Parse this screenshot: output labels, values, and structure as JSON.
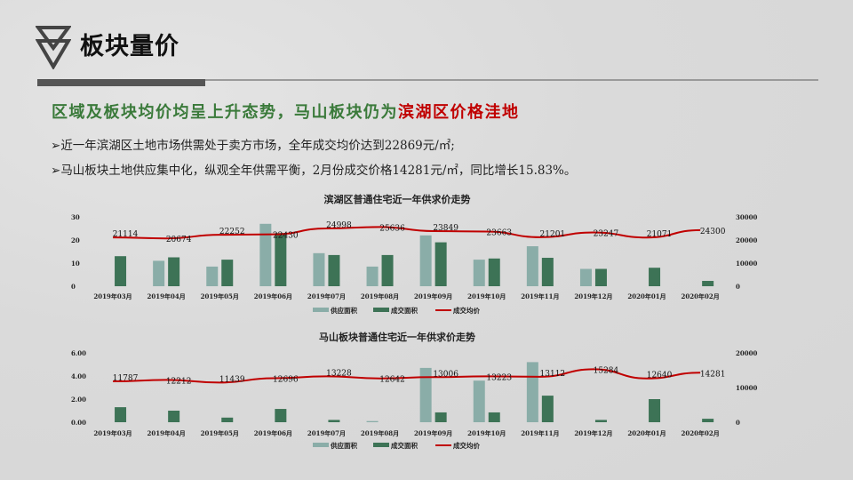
{
  "header": {
    "title": "板块量价",
    "logo_icon": "double-triangle-down-icon"
  },
  "subheading": {
    "green": "区域及板块均价均呈上升态势，马山板块仍为",
    "red": "滨湖区价格洼地",
    "green_color": "#3a7a3a",
    "red_color": "#c00000"
  },
  "bullets": [
    {
      "marker": "➢",
      "text": "近一年滨湖区土地市场供需处于卖方市场，全年成交均价达到22869元/㎡;"
    },
    {
      "marker": "➢",
      "text": "马山板块土地供应集中化，纵观全年供需平衡，2月份成交价格14281元/㎡，同比增长15.83%。"
    }
  ],
  "colors": {
    "supply": "#8aada8",
    "deal": "#3d7356",
    "price": "#c00000"
  },
  "chart_data": [
    {
      "type": "bar+line",
      "title": "滨湖区普通住宅近一年供求价走势",
      "categories": [
        "2019年03月",
        "2019年04月",
        "2019年05月",
        "2019年06月",
        "2019年07月",
        "2019年08月",
        "2019年09月",
        "2019年10月",
        "2019年11月",
        "2019年12月",
        "2020年01月",
        "2020年02月"
      ],
      "left_axis": {
        "range": [
          0,
          30
        ],
        "ticks": [
          "0",
          "10",
          "20",
          "30"
        ]
      },
      "right_axis": {
        "range": [
          0,
          30000
        ],
        "ticks": [
          "0",
          "10000",
          "20000",
          "30000"
        ]
      },
      "series": [
        {
          "name": "供应面积",
          "type": "bar",
          "axis": "left",
          "values": [
            0,
            11,
            8.5,
            27,
            14.3,
            8.5,
            22,
            11.5,
            17.3,
            7.5,
            0,
            0
          ]
        },
        {
          "name": "成交面积",
          "type": "bar",
          "axis": "left",
          "values": [
            13,
            12.5,
            11.5,
            23,
            13.5,
            13.5,
            19,
            12,
            12.3,
            7.5,
            8,
            2.3
          ]
        },
        {
          "name": "成交均价",
          "type": "line",
          "axis": "right",
          "values": [
            21114,
            20674,
            22252,
            22430,
            24998,
            25636,
            23849,
            23663,
            21201,
            23247,
            21071,
            24300
          ],
          "labels": [
            "21114",
            "20674",
            "22252",
            "22430",
            "24998",
            "25636",
            "23849",
            "23663",
            "21201",
            "23247",
            "21071",
            "24300"
          ]
        }
      ],
      "legend": "bottom",
      "grid": false
    },
    {
      "type": "bar+line",
      "title": "马山板块普通住宅近一年供求价走势",
      "categories": [
        "2019年03月",
        "2019年04月",
        "2019年05月",
        "2019年06月",
        "2019年07月",
        "2019年08月",
        "2019年09月",
        "2019年10月",
        "2019年11月",
        "2019年12月",
        "2020年01月",
        "2020年02月"
      ],
      "left_axis": {
        "range": [
          0,
          6
        ],
        "ticks": [
          "0.00",
          "2.00",
          "4.00",
          "6.00"
        ]
      },
      "right_axis": {
        "range": [
          0,
          20000
        ],
        "ticks": [
          "0",
          "10000",
          "20000"
        ]
      },
      "series": [
        {
          "name": "供应面积",
          "type": "bar",
          "axis": "left",
          "values": [
            0,
            0,
            0,
            0,
            0,
            0.1,
            4.7,
            3.6,
            5.2,
            0,
            0,
            0
          ]
        },
        {
          "name": "成交面积",
          "type": "bar",
          "axis": "left",
          "values": [
            1.3,
            1.0,
            0.4,
            1.15,
            0.2,
            0,
            0.85,
            0.85,
            2.3,
            0.2,
            2.0,
            0.3
          ]
        },
        {
          "name": "成交均价",
          "type": "line",
          "axis": "right",
          "values": [
            11787,
            12212,
            11439,
            12696,
            13228,
            12642,
            13006,
            13223,
            13112,
            15284,
            12640,
            14281
          ],
          "labels": [
            "11787",
            "12212",
            "11439",
            "12696",
            "13228",
            "12642",
            "13006",
            "13223",
            "13112",
            "15284",
            "12640",
            "14281"
          ]
        }
      ],
      "legend": "bottom",
      "grid": false
    }
  ]
}
